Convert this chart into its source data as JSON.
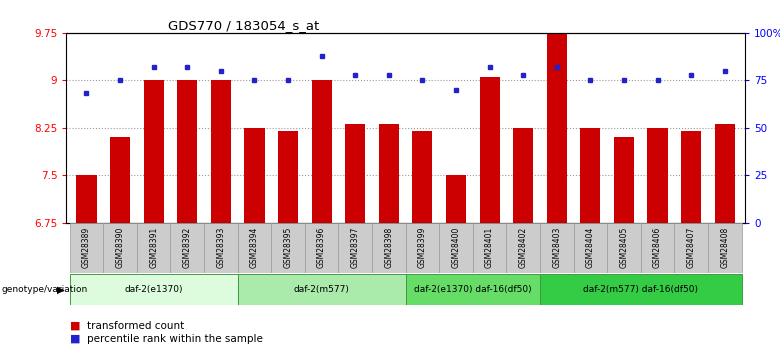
{
  "title": "GDS770 / 183054_s_at",
  "samples": [
    "GSM28389",
    "GSM28390",
    "GSM28391",
    "GSM28392",
    "GSM28393",
    "GSM28394",
    "GSM28395",
    "GSM28396",
    "GSM28397",
    "GSM28398",
    "GSM28399",
    "GSM28400",
    "GSM28401",
    "GSM28402",
    "GSM28403",
    "GSM28404",
    "GSM28405",
    "GSM28406",
    "GSM28407",
    "GSM28408"
  ],
  "bar_values": [
    7.5,
    8.1,
    9.0,
    9.0,
    9.0,
    8.25,
    8.2,
    9.0,
    8.3,
    8.3,
    8.2,
    7.5,
    9.05,
    8.25,
    9.75,
    8.25,
    8.1,
    8.25,
    8.2,
    8.3
  ],
  "dot_values": [
    68,
    75,
    82,
    82,
    80,
    75,
    75,
    88,
    78,
    78,
    75,
    70,
    82,
    78,
    82,
    75,
    75,
    75,
    78,
    80
  ],
  "ylim_left": [
    6.75,
    9.75
  ],
  "ylim_right": [
    0,
    100
  ],
  "yticks_left": [
    6.75,
    7.5,
    8.25,
    9.0,
    9.75
  ],
  "ytick_labels_left": [
    "6.75",
    "7.5",
    "8.25",
    "9",
    "9.75"
  ],
  "yticks_right": [
    0,
    25,
    50,
    75,
    100
  ],
  "ytick_labels_right": [
    "0",
    "25",
    "50",
    "75",
    "100%"
  ],
  "bar_color": "#cc0000",
  "dot_color": "#2222cc",
  "bar_bottom": 6.75,
  "grid_yticks": [
    7.5,
    8.25,
    9.0,
    9.75
  ],
  "groups": [
    {
      "label": "daf-2(e1370)",
      "start": 0,
      "end": 5,
      "color": "#ddfcdd"
    },
    {
      "label": "daf-2(m577)",
      "start": 5,
      "end": 10,
      "color": "#aaeaaa"
    },
    {
      "label": "daf-2(e1370) daf-16(df50)",
      "start": 10,
      "end": 14,
      "color": "#66dd66"
    },
    {
      "label": "daf-2(m577) daf-16(df50)",
      "start": 14,
      "end": 20,
      "color": "#33cc44"
    }
  ],
  "legend_bar_label": "transformed count",
  "legend_dot_label": "percentile rank within the sample",
  "genotype_label": "genotype/variation",
  "grid_color": "#999999",
  "bg_color": "#ffffff",
  "plot_bg": "#ffffff",
  "label_row_color": "#cccccc",
  "label_row_edge": "#999999"
}
